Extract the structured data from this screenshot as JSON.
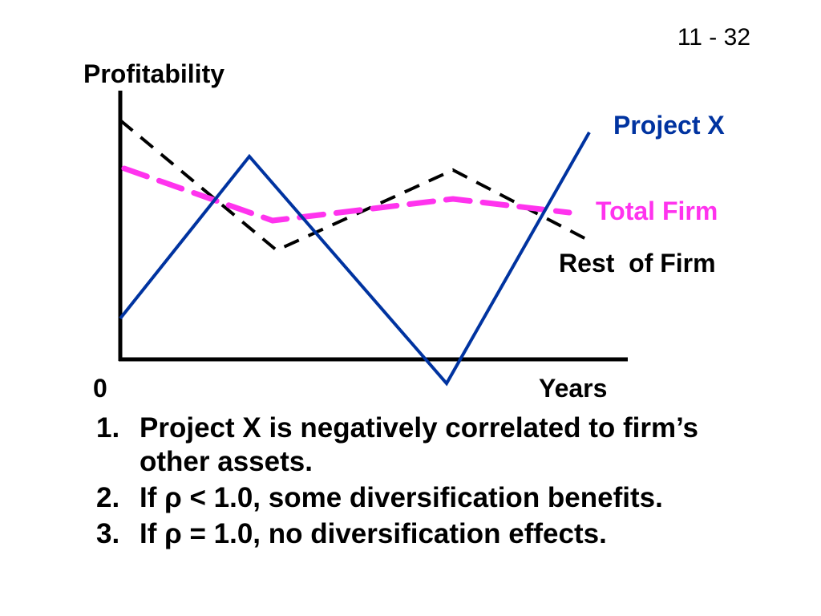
{
  "slide_number": "11 - 32",
  "diagram": {
    "y_axis_label": "Profitability",
    "x_origin_label": "0",
    "x_axis_label": "Years",
    "series": [
      {
        "key": "project_x",
        "name": "Project X",
        "color": "#0033a0",
        "style": "solid"
      },
      {
        "key": "total_firm",
        "name": "Total Firm",
        "color": "#ff33ee",
        "style": "dashed"
      },
      {
        "key": "rest_of_firm",
        "name": "Rest  of Firm",
        "color": "#000000",
        "style": "dashed"
      }
    ]
  },
  "notes": [
    {
      "num": "1.",
      "text": "Project X is negatively correlated to firm’s other assets."
    },
    {
      "num": "2.",
      "text": "If ρ < 1.0, some diversification benefits."
    },
    {
      "num": "3.",
      "text": "If ρ = 1.0, no diversification effects."
    }
  ]
}
